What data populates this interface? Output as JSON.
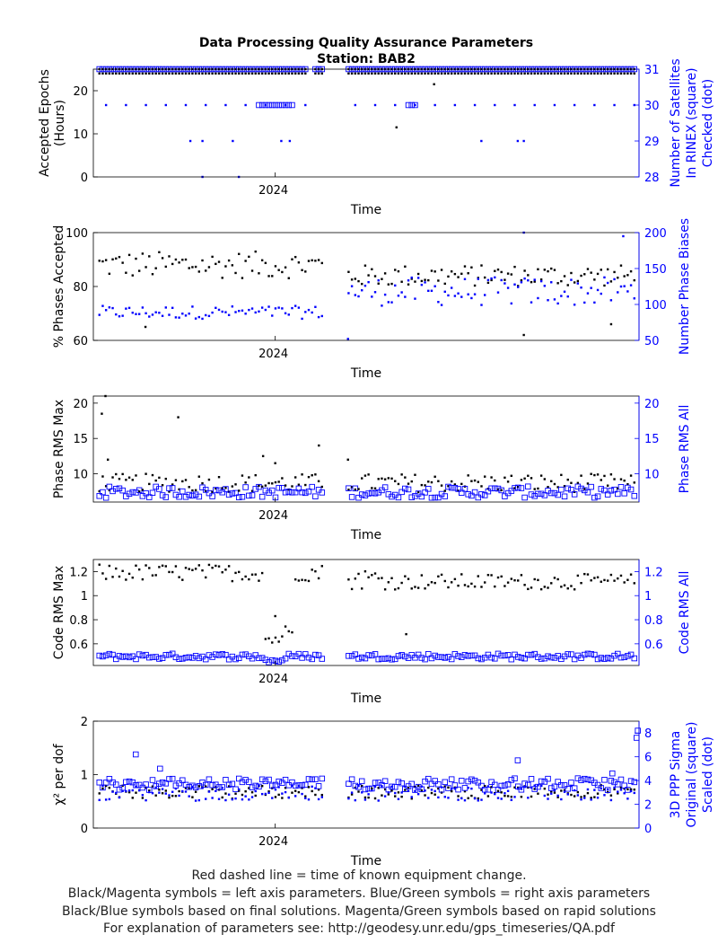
{
  "figure": {
    "title_line1": "Data Processing Quality Assurance Parameters",
    "title_line2": "Station: BAB2",
    "xlabel": "Time",
    "year_tick": "2024",
    "footer": [
      "Red dashed line = time of known equipment change.",
      "Black/Magenta symbols = left axis parameters. Blue/Green symbols = right axis parameters",
      "Black/Blue symbols based on final solutions.  Magenta/Green symbols based on rapid solutions",
      "For explanation of parameters see: http://geodesy.unr.edu/gps_timeseries/QA.pdf"
    ],
    "colors": {
      "left": "#000000",
      "right": "#0000ff"
    }
  },
  "chart_data": [
    {
      "type": "scatter",
      "title": "Data Processing Quality Assurance Parameters / Station: BAB2",
      "xlabel": "Time",
      "xtick_labels": [
        "2024"
      ],
      "xlim": [
        2023.85,
        2024.3
      ],
      "ylabel_left": [
        "Accepted Epochs",
        "(Hours)"
      ],
      "ylabel_right": [
        "Number of Satellites",
        "In RINEX (square)",
        "Checked (dot)"
      ],
      "ylim_left": [
        0,
        25
      ],
      "yticks_left": [
        0,
        10,
        20
      ],
      "ylim_right": [
        28,
        31
      ],
      "yticks_right": [
        28,
        29,
        30,
        31
      ],
      "series": [
        {
          "axis": "left",
          "marker": "dot",
          "typical": 24,
          "outliers": [
            {
              "x": 2024.1,
              "y": 11.5
            },
            {
              "x": 2024.131,
              "y": 21.5
            }
          ]
        },
        {
          "axis": "right",
          "marker": "square",
          "typical": 31,
          "band": {
            "from": 2023.985,
            "to": 2024.015,
            "value": 30
          }
        },
        {
          "axis": "right",
          "marker": "dot",
          "typical": 31,
          "values": [
            30,
            29,
            28
          ]
        }
      ],
      "gaps": [
        [
          2024.025,
          2024.032
        ],
        [
          2024.04,
          2024.06
        ]
      ]
    },
    {
      "type": "scatter",
      "xlabel": "Time",
      "xtick_labels": [
        "2024"
      ],
      "xlim": [
        2023.85,
        2024.3
      ],
      "ylabel_left": [
        "% Phases Accepted"
      ],
      "ylabel_right": [
        "Number Phase Biases"
      ],
      "ylim_left": [
        60,
        100
      ],
      "yticks_left": [
        60,
        80,
        100
      ],
      "ylim_right": [
        50,
        200
      ],
      "yticks_right": [
        50,
        100,
        150,
        200
      ],
      "series": [
        {
          "axis": "left",
          "marker": "dot",
          "range_before_gap": [
            82,
            93
          ],
          "range_after_gap": [
            80,
            88
          ],
          "outliers": [
            62,
            65,
            66
          ]
        },
        {
          "axis": "right",
          "marker": "dot",
          "range_before_gap": [
            80,
            100
          ],
          "range_after_gap": [
            95,
            140
          ],
          "outliers": [
            55,
            200
          ]
        }
      ],
      "gaps": [
        [
          2024.04,
          2024.06
        ]
      ]
    },
    {
      "type": "scatter",
      "xlabel": "Time",
      "xtick_labels": [
        "2024"
      ],
      "xlim": [
        2023.85,
        2024.3
      ],
      "ylabel_left": [
        "Phase RMS Max"
      ],
      "ylabel_right": [
        "Phase RMS All"
      ],
      "ylim_left": [
        6,
        21
      ],
      "yticks_left": [
        10,
        15,
        20
      ],
      "ylim_right": [
        6,
        21
      ],
      "yticks_right": [
        10,
        15,
        20
      ],
      "series": [
        {
          "axis": "left",
          "marker": "dot",
          "typical": 8.5,
          "outliers": [
            18.5,
            21,
            18,
            14,
            12,
            11.5
          ]
        },
        {
          "axis": "right",
          "marker": "square",
          "typical": 7
        }
      ],
      "gaps": [
        [
          2024.04,
          2024.06
        ]
      ]
    },
    {
      "type": "scatter",
      "xlabel": "Time",
      "xtick_labels": [
        "2024"
      ],
      "xlim": [
        2023.85,
        2024.3
      ],
      "ylabel_left": [
        "Code RMS Max"
      ],
      "ylabel_right": [
        "Code RMS All"
      ],
      "ylim_left": [
        0.42,
        1.3
      ],
      "yticks_left": [
        0.6,
        0.8,
        1,
        1.2
      ],
      "yticklabels_left": [
        "0.6",
        "0.8",
        "1",
        "1.2"
      ],
      "ylim_right": [
        0.42,
        1.3
      ],
      "yticks_right": [
        0.6,
        0.8,
        1,
        1.2
      ],
      "yticklabels_right": [
        "0.6",
        "0.8",
        "1",
        "1.2"
      ],
      "series": [
        {
          "axis": "left",
          "marker": "dot",
          "typical": 1.18,
          "dip": {
            "value": 0.62,
            "peak": 0.83
          },
          "later_level": 1.12
        },
        {
          "axis": "right",
          "marker": "square",
          "typical": 0.49
        }
      ],
      "gaps": [
        [
          2024.04,
          2024.06
        ]
      ]
    },
    {
      "type": "scatter",
      "xlabel": "Time",
      "xtick_labels": [
        "2024"
      ],
      "xlim": [
        2023.85,
        2024.3
      ],
      "ylabel_left": [
        "χ² per dof"
      ],
      "ylabel_right": [
        "3D PPP Sigma",
        "Original (square)",
        "Scaled (dot)"
      ],
      "ylim_left": [
        0,
        2
      ],
      "yticks_left": [
        0,
        1,
        2
      ],
      "ylim_right": [
        0,
        9
      ],
      "yticks_right": [
        0,
        2,
        4,
        6,
        8
      ],
      "series": [
        {
          "axis": "left",
          "marker": "dot",
          "typical": 0.65
        },
        {
          "axis": "right",
          "marker": "square",
          "typical": 3.4
        },
        {
          "axis": "right",
          "marker": "dot",
          "typical": 2.8
        }
      ],
      "gaps": [
        [
          2024.04,
          2024.06
        ]
      ]
    }
  ]
}
